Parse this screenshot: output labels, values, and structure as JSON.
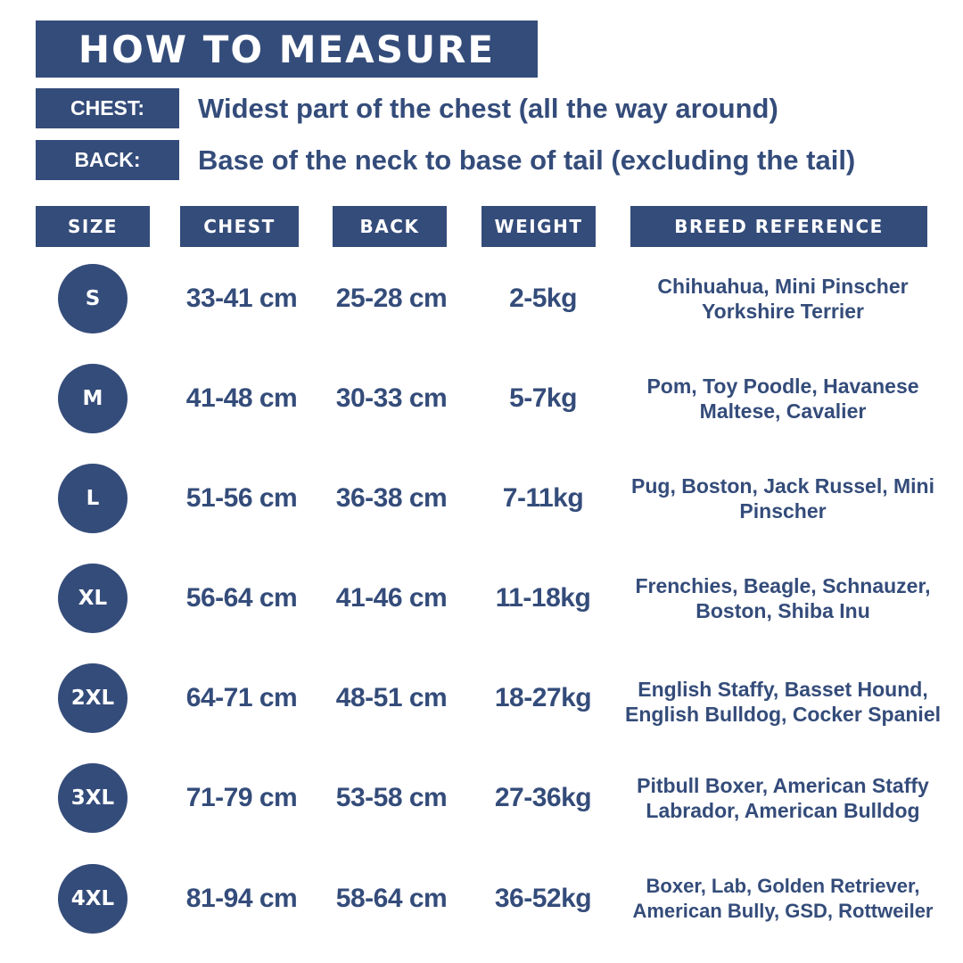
{
  "title": "HOW TO MEASURE",
  "definitions": {
    "chest": {
      "label": "CHEST:",
      "text": "Widest part of the chest (all the way around)"
    },
    "back": {
      "label": "BACK:",
      "text": "Base of the neck to base of tail (excluding the tail)"
    }
  },
  "headers": {
    "size": "SIZE",
    "chest": "CHEST",
    "back": "BACK",
    "weight": "WEIGHT",
    "breed": "BREED REFERENCE"
  },
  "rows": [
    {
      "size": "S",
      "chest": "33-41 cm",
      "back": "25-28 cm",
      "weight": "2-5kg",
      "breed": "Chihuahua, Mini Pinscher Yorkshire Terrier"
    },
    {
      "size": "M",
      "chest": "41-48 cm",
      "back": "30-33 cm",
      "weight": "5-7kg",
      "breed": "Pom, Toy Poodle, Havanese Maltese, Cavalier"
    },
    {
      "size": "L",
      "chest": "51-56 cm",
      "back": "36-38 cm",
      "weight": "7-11kg",
      "breed": "Pug, Boston, Jack Russel, Mini Pinscher"
    },
    {
      "size": "XL",
      "chest": "56-64 cm",
      "back": "41-46 cm",
      "weight": "11-18kg",
      "breed": "Frenchies, Beagle, Schnauzer, Boston, Shiba Inu"
    },
    {
      "size": "2XL",
      "chest": "64-71 cm",
      "back": "48-51 cm",
      "weight": "18-27kg",
      "breed": "English Staffy, Basset Hound, English Bulldog, Cocker Spaniel"
    },
    {
      "size": "3XL",
      "chest": "71-79 cm",
      "back": "53-58 cm",
      "weight": "27-36kg",
      "breed": "Pitbull Boxer, American Staffy Labrador, American Bulldog"
    },
    {
      "size": "4XL",
      "chest": "81-94 cm",
      "back": "58-64 cm",
      "weight": "36-52kg",
      "breed": "Boxer, Lab, Golden Retriever, American Bully, GSD, Rottweiler"
    }
  ],
  "colors": {
    "navy": "#344c7a",
    "white": "#ffffff"
  }
}
